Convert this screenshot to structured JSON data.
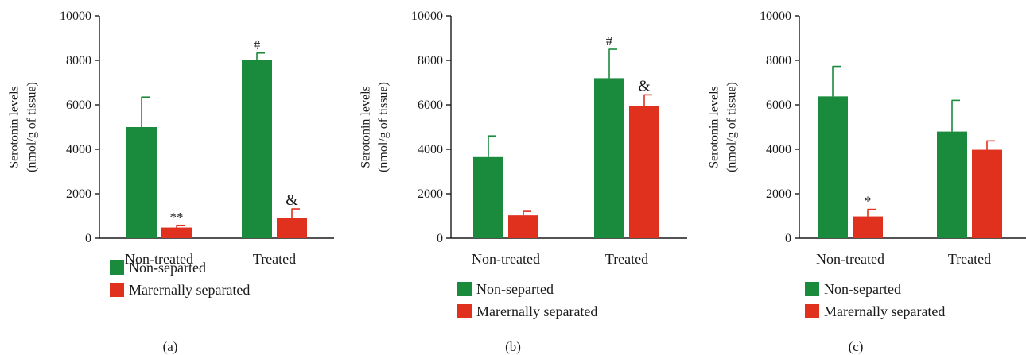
{
  "legend": {
    "items": [
      {
        "label": "Non-separted",
        "color": "#1a8a3c"
      },
      {
        "label": "Marernally separated",
        "color": "#e0301e"
      }
    ]
  },
  "colors": {
    "non_separated": "#1a8a3c",
    "maternally_separated": "#e0301e",
    "axis": "#1a1a1a"
  },
  "chart_data": [
    {
      "type": "bar",
      "panel_label": "(a)",
      "ylabel_line1": "Serotonin levels",
      "ylabel_line2": "(nmol/g of tissue)",
      "categories": [
        "Non-treated",
        "Treated"
      ],
      "ylim": [
        0,
        10000
      ],
      "yticks": [
        0,
        2000,
        4000,
        6000,
        8000,
        10000
      ],
      "series": [
        {
          "name": "Non-separted",
          "values": [
            5000,
            8000
          ],
          "errors": [
            1350,
            330
          ],
          "annotations": [
            "",
            "#"
          ]
        },
        {
          "name": "Marernally separated",
          "values": [
            480,
            900
          ],
          "errors": [
            100,
            420
          ],
          "annotations": [
            "**",
            "&"
          ]
        }
      ]
    },
    {
      "type": "bar",
      "panel_label": "(b)",
      "ylabel_line1": "Serotonin levels",
      "ylabel_line2": "(nmol/g of tissue)",
      "categories": [
        "Non-treated",
        "Treated"
      ],
      "ylim": [
        0,
        10000
      ],
      "yticks": [
        0,
        2000,
        4000,
        6000,
        8000,
        10000
      ],
      "series": [
        {
          "name": "Non-separted",
          "values": [
            3650,
            7200
          ],
          "errors": [
            950,
            1300
          ],
          "annotations": [
            "",
            "#"
          ]
        },
        {
          "name": "Marernally separated",
          "values": [
            1030,
            5950
          ],
          "errors": [
            180,
            500
          ],
          "annotations": [
            "",
            "&"
          ]
        }
      ]
    },
    {
      "type": "bar",
      "panel_label": "(c)",
      "ylabel_line1": "Serotonin levels",
      "ylabel_line2": "(nmol/g of tissue)",
      "categories": [
        "Non-treated",
        "Treated"
      ],
      "ylim": [
        0,
        10000
      ],
      "yticks": [
        0,
        2000,
        4000,
        6000,
        8000,
        10000
      ],
      "series": [
        {
          "name": "Non-separted",
          "values": [
            6380,
            4800
          ],
          "errors": [
            1350,
            1400
          ],
          "annotations": [
            "",
            ""
          ]
        },
        {
          "name": "Marernally separated",
          "values": [
            980,
            3980
          ],
          "errors": [
            320,
            400
          ],
          "annotations": [
            "*",
            ""
          ]
        }
      ]
    }
  ]
}
